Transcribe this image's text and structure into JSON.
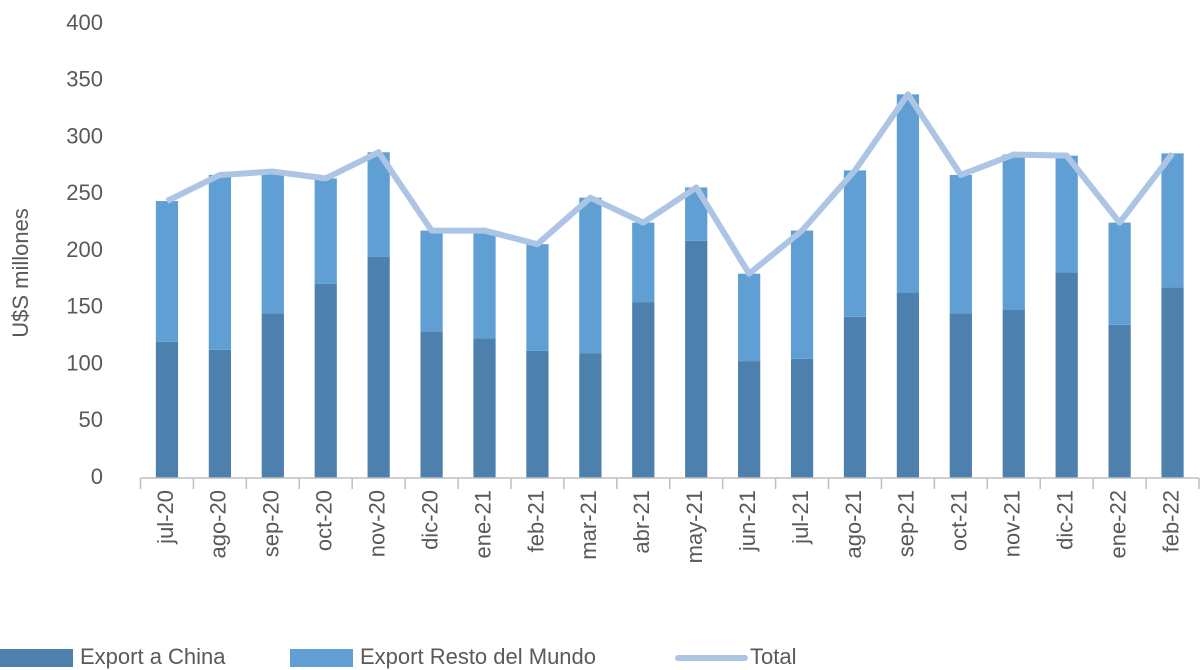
{
  "chart_data": {
    "type": "stacked-bar-line",
    "y_label": "U$S millones",
    "categories": [
      "jul-20",
      "ago-20",
      "sep-20",
      "oct-20",
      "nov-20",
      "dic-20",
      "ene-21",
      "feb-21",
      "mar-21",
      "abr-21",
      "may-21",
      "jun-21",
      "jul-21",
      "ago-21",
      "sep-21",
      "oct-21",
      "nov-21",
      "dic-21",
      "ene-22",
      "feb-22"
    ],
    "series": [
      {
        "name": "Export a China",
        "color": "#4e80ad",
        "kind": "bar",
        "values": [
          120,
          113,
          145,
          171,
          195,
          129,
          123,
          112,
          110,
          155,
          209,
          103,
          105,
          142,
          163,
          145,
          148,
          181,
          135,
          168
        ]
      },
      {
        "name": "Export Resto del Mundo",
        "color": "#609fd3",
        "kind": "bar",
        "values": [
          124,
          154,
          125,
          93,
          92,
          89,
          95,
          94,
          137,
          70,
          47,
          77,
          113,
          129,
          175,
          122,
          137,
          103,
          90,
          118
        ]
      },
      {
        "name": "Total",
        "color": "#adc5e4",
        "kind": "line",
        "values": [
          244,
          267,
          270,
          264,
          287,
          218,
          218,
          206,
          247,
          225,
          256,
          180,
          218,
          271,
          338,
          267,
          285,
          284,
          225,
          286
        ]
      }
    ],
    "ylim": [
      0,
      400
    ],
    "yticks": [
      0,
      50,
      100,
      150,
      200,
      250,
      300,
      350,
      400
    ],
    "grid": false
  }
}
